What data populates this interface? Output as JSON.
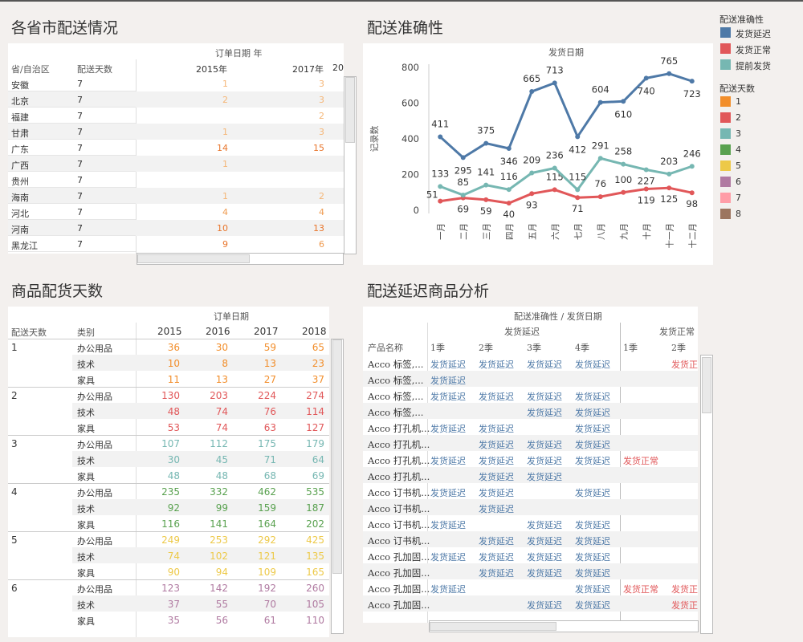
{
  "titles": {
    "province": "各省市配送情况",
    "accuracy": "配送准确性",
    "days": "商品配货天数",
    "delay": "配送延迟商品分析"
  },
  "province_table": {
    "col_group": "订单日期 年",
    "col_province": "省/自治区",
    "col_days": "配送天数",
    "years": [
      "2015年",
      "2017年",
      "20"
    ],
    "rows": [
      {
        "name": "安徽",
        "days": "7",
        "v1": "1",
        "v2": "3"
      },
      {
        "name": "北京",
        "days": "7",
        "v1": "2",
        "v2": "3"
      },
      {
        "name": "福建",
        "days": "7",
        "v1": "",
        "v2": "2"
      },
      {
        "name": "甘肃",
        "days": "7",
        "v1": "1",
        "v2": "3"
      },
      {
        "name": "广东",
        "days": "7",
        "v1": "14",
        "v2": "15"
      },
      {
        "name": "广西",
        "days": "7",
        "v1": "1",
        "v2": ""
      },
      {
        "name": "贵州",
        "days": "7",
        "v1": "",
        "v2": ""
      },
      {
        "name": "海南",
        "days": "7",
        "v1": "1",
        "v2": "2"
      },
      {
        "name": "河北",
        "days": "7",
        "v1": "4",
        "v2": "4"
      },
      {
        "name": "河南",
        "days": "7",
        "v1": "10",
        "v2": "13"
      },
      {
        "name": "黑龙江",
        "days": "7",
        "v1": "9",
        "v2": "6"
      }
    ]
  },
  "chart_data": {
    "type": "line",
    "title": "发货日期",
    "ylabel": "记录数",
    "ylim": [
      0,
      800
    ],
    "yticks": [
      "800",
      "600",
      "400",
      "200",
      "0"
    ],
    "categories": [
      "一月",
      "二月",
      "三月",
      "四月",
      "五月",
      "六月",
      "七月",
      "八月",
      "九月",
      "十月",
      "十一月",
      "十二月"
    ],
    "series": [
      {
        "name": "发货延迟",
        "color": "#4e79a7",
        "values": [
          411,
          295,
          375,
          346,
          665,
          713,
          412,
          604,
          610,
          740,
          765,
          723
        ]
      },
      {
        "name": "发货正常",
        "color": "#e15759",
        "values": [
          51,
          69,
          59,
          40,
          93,
          115,
          71,
          76,
          100,
          119,
          125,
          98
        ]
      },
      {
        "name": "提前发货",
        "color": "#76b7b2",
        "values": [
          133,
          85,
          141,
          116,
          209,
          236,
          115,
          291,
          258,
          227,
          203,
          246
        ]
      }
    ]
  },
  "legend": {
    "acc_title": "配送准确性",
    "acc_items": [
      {
        "label": "发货延迟",
        "color": "#4e79a7"
      },
      {
        "label": "发货正常",
        "color": "#e15759"
      },
      {
        "label": "提前发货",
        "color": "#76b7b2"
      }
    ],
    "days_title": "配送天数",
    "days_items": [
      {
        "label": "1",
        "color": "#f28e2b"
      },
      {
        "label": "2",
        "color": "#e15759"
      },
      {
        "label": "3",
        "color": "#76b7b2"
      },
      {
        "label": "4",
        "color": "#59a14f"
      },
      {
        "label": "5",
        "color": "#edc948"
      },
      {
        "label": "6",
        "color": "#b07aa1"
      },
      {
        "label": "7",
        "color": "#ff9da7"
      },
      {
        "label": "8",
        "color": "#9c755f"
      }
    ]
  },
  "days_table": {
    "col_group": "订单日期",
    "col_days": "配送天数",
    "col_cat": "类别",
    "years": [
      "2015",
      "2016",
      "2017",
      "2018"
    ],
    "groups": [
      {
        "day": "1",
        "color": "#f28e2b",
        "rows": [
          [
            "办公用品",
            "36",
            "30",
            "59",
            "65"
          ],
          [
            "技术",
            "10",
            "8",
            "13",
            "23"
          ],
          [
            "家具",
            "11",
            "13",
            "27",
            "37"
          ]
        ]
      },
      {
        "day": "2",
        "color": "#e15759",
        "rows": [
          [
            "办公用品",
            "130",
            "203",
            "224",
            "274"
          ],
          [
            "技术",
            "48",
            "74",
            "76",
            "114"
          ],
          [
            "家具",
            "53",
            "74",
            "63",
            "127"
          ]
        ]
      },
      {
        "day": "3",
        "color": "#76b7b2",
        "rows": [
          [
            "办公用品",
            "107",
            "112",
            "175",
            "179"
          ],
          [
            "技术",
            "30",
            "45",
            "71",
            "64"
          ],
          [
            "家具",
            "48",
            "48",
            "68",
            "69"
          ]
        ]
      },
      {
        "day": "4",
        "color": "#59a14f",
        "rows": [
          [
            "办公用品",
            "235",
            "332",
            "462",
            "535"
          ],
          [
            "技术",
            "92",
            "99",
            "159",
            "187"
          ],
          [
            "家具",
            "116",
            "141",
            "164",
            "202"
          ]
        ]
      },
      {
        "day": "5",
        "color": "#edc948",
        "rows": [
          [
            "办公用品",
            "249",
            "253",
            "292",
            "425"
          ],
          [
            "技术",
            "74",
            "102",
            "121",
            "135"
          ],
          [
            "家具",
            "90",
            "94",
            "109",
            "165"
          ]
        ]
      },
      {
        "day": "6",
        "color": "#b07aa1",
        "rows": [
          [
            "办公用品",
            "123",
            "142",
            "192",
            "260"
          ],
          [
            "技术",
            "37",
            "55",
            "70",
            "105"
          ],
          [
            "家具",
            "35",
            "56",
            "61",
            "110"
          ]
        ]
      }
    ]
  },
  "delay_table": {
    "header": "配送准确性 / 发货日期",
    "group_delay": "发货延迟",
    "group_normal": "发货正常",
    "col_product": "产品名称",
    "quarters": [
      "1季",
      "2季",
      "3季",
      "4季",
      "1季",
      "2季"
    ],
    "rows": [
      {
        "name": "Acco 标签,...",
        "c": [
          "发货延迟",
          "发货延迟",
          "发货延迟",
          "发货延迟",
          "",
          "发货正"
        ]
      },
      {
        "name": "Acco 标签,...",
        "c": [
          "发货延迟",
          "",
          "",
          "",
          "",
          ""
        ]
      },
      {
        "name": "Acco 标签,...",
        "c": [
          "发货延迟",
          "发货延迟",
          "发货延迟",
          "发货延迟",
          "",
          ""
        ]
      },
      {
        "name": "Acco 标签,...",
        "c": [
          "",
          "",
          "发货延迟",
          "发货延迟",
          "",
          ""
        ]
      },
      {
        "name": "Acco 打孔机...",
        "c": [
          "发货延迟",
          "发货延迟",
          "",
          "发货延迟",
          "",
          ""
        ]
      },
      {
        "name": "Acco 打孔机...",
        "c": [
          "",
          "发货延迟",
          "发货延迟",
          "发货延迟",
          "",
          ""
        ]
      },
      {
        "name": "Acco 打孔机...",
        "c": [
          "发货延迟",
          "发货延迟",
          "发货延迟",
          "发货延迟",
          "发货正常",
          ""
        ]
      },
      {
        "name": "Acco 打孔机...",
        "c": [
          "",
          "发货延迟",
          "发货延迟",
          "",
          "",
          ""
        ]
      },
      {
        "name": "Acco 订书机...",
        "c": [
          "发货延迟",
          "发货延迟",
          "",
          "发货延迟",
          "",
          ""
        ]
      },
      {
        "name": "Acco 订书机...",
        "c": [
          "",
          "发货延迟",
          "",
          "",
          "",
          ""
        ]
      },
      {
        "name": "Acco 订书机...",
        "c": [
          "发货延迟",
          "",
          "发货延迟",
          "发货延迟",
          "",
          ""
        ]
      },
      {
        "name": "Acco 订书机...",
        "c": [
          "",
          "发货延迟",
          "发货延迟",
          "发货延迟",
          "",
          ""
        ]
      },
      {
        "name": "Acco 孔加固...",
        "c": [
          "发货延迟",
          "发货延迟",
          "发货延迟",
          "发货延迟",
          "",
          ""
        ]
      },
      {
        "name": "Acco 孔加固...",
        "c": [
          "",
          "发货延迟",
          "发货延迟",
          "发货延迟",
          "",
          ""
        ]
      },
      {
        "name": "Acco 孔加固...",
        "c": [
          "发货延迟",
          "",
          "",
          "发货延迟",
          "发货正常",
          "发货正"
        ]
      },
      {
        "name": "Acco 孔加固...",
        "c": [
          "",
          "",
          "发货延迟",
          "发货延迟",
          "",
          "发货正"
        ]
      }
    ]
  }
}
